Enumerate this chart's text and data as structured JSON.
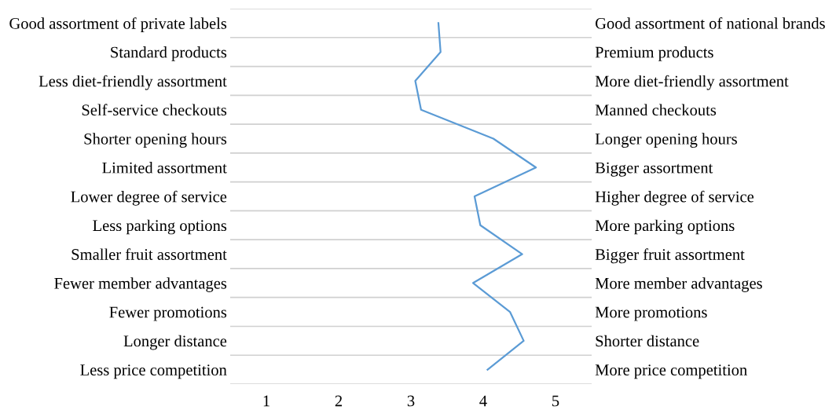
{
  "chart_data": {
    "type": "line",
    "orientation": "horizontal",
    "categories": [
      "Good assortment of private labels",
      "Standard products",
      "Less diet-friendly assortment",
      "Self-service checkouts",
      "Shorter opening hours",
      "Limited assortment",
      "Lower degree of service",
      "Less parking options",
      "Smaller fruit assortment",
      "Fewer member advantages",
      "Fewer promotions",
      "Longer distance",
      "Less price competition"
    ],
    "y2_categories": [
      "Good assortment of national brands",
      "Premium products",
      "More diet-friendly assortment",
      "Manned checkouts",
      "Longer opening hours",
      "Bigger assortment",
      "Higher degree of service",
      "More parking options",
      "Bigger fruit assortment",
      "More member advantages",
      "More promotions",
      "Shorter distance",
      "More price competition"
    ],
    "series": [
      {
        "color": "#5b9bd5",
        "values": [
          3.38,
          3.41,
          3.06,
          3.14,
          4.14,
          4.73,
          3.88,
          3.96,
          4.54,
          3.86,
          4.37,
          4.56,
          4.06
        ]
      }
    ],
    "xlim": [
      0.5,
      5.5
    ],
    "xticks": [
      1,
      2,
      3,
      4,
      5
    ],
    "grid": "y",
    "marker": "none",
    "line_style": "solid"
  }
}
